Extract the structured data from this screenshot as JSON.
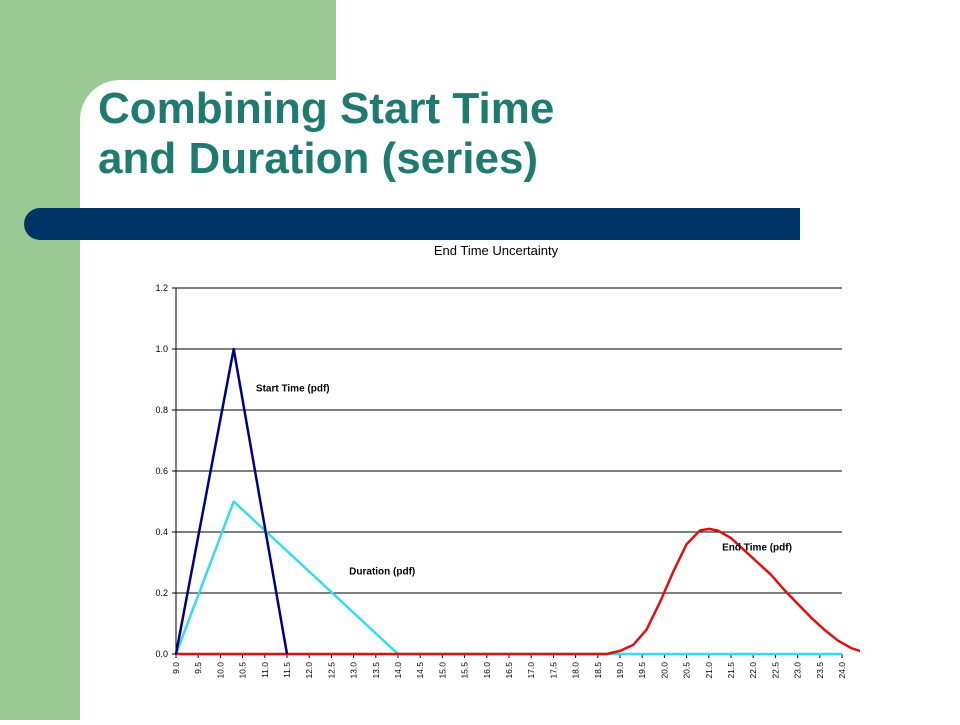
{
  "slide": {
    "title_line1": "Combining Start Time",
    "title_line2": "and Duration (series)",
    "colors": {
      "green_band": "#9bc994",
      "title": "#1f7a6f",
      "bar": "#003366"
    }
  },
  "chart_data": {
    "type": "line",
    "title": "End Time Uncertainty",
    "xlabel": "",
    "ylabel": "",
    "ylim": [
      0,
      1.2
    ],
    "yticks": [
      "0.0",
      "0.2",
      "0.4",
      "0.6",
      "0.8",
      "1.0",
      "1.2"
    ],
    "x": [
      "9.0",
      "9.5",
      "10.0",
      "10.5",
      "11.0",
      "11.5",
      "12.0",
      "12.5",
      "13.0",
      "13.5",
      "14.0",
      "14.5",
      "15.0",
      "15.5",
      "16.0",
      "16.5",
      "17.0",
      "17.5",
      "18.0",
      "18.5",
      "19.0",
      "19.5",
      "20.0",
      "20.5",
      "21.0",
      "21.5",
      "22.0",
      "22.5",
      "23.0",
      "23.5",
      "24.0"
    ],
    "grid": "horizontal",
    "series": [
      {
        "name": "Start Time (pdf)",
        "color": "#000080",
        "points": [
          [
            9.0,
            0
          ],
          [
            10.3,
            1.0
          ],
          [
            11.5,
            0
          ]
        ]
      },
      {
        "name": "Duration (pdf)",
        "color": "#33ddee",
        "points": [
          [
            9.0,
            0
          ],
          [
            10.3,
            0.5
          ],
          [
            14.0,
            0
          ],
          [
            24.0,
            0
          ]
        ]
      },
      {
        "name": "End Time (pdf)",
        "color": "#dd1111",
        "points": [
          [
            9.0,
            0
          ],
          [
            18.7,
            0
          ],
          [
            19.0,
            0.01
          ],
          [
            19.3,
            0.03
          ],
          [
            19.6,
            0.08
          ],
          [
            19.9,
            0.17
          ],
          [
            20.2,
            0.27
          ],
          [
            20.5,
            0.36
          ],
          [
            20.8,
            0.405
          ],
          [
            21.0,
            0.41
          ],
          [
            21.2,
            0.405
          ],
          [
            21.5,
            0.38
          ],
          [
            21.8,
            0.34
          ],
          [
            22.1,
            0.3
          ],
          [
            22.4,
            0.26
          ],
          [
            22.7,
            0.21
          ],
          [
            23.0,
            0.165
          ],
          [
            23.3,
            0.12
          ],
          [
            23.6,
            0.08
          ],
          [
            23.9,
            0.045
          ],
          [
            24.2,
            0.02
          ],
          [
            24.5,
            0.005
          ],
          [
            24.7,
            0
          ]
        ]
      }
    ]
  }
}
